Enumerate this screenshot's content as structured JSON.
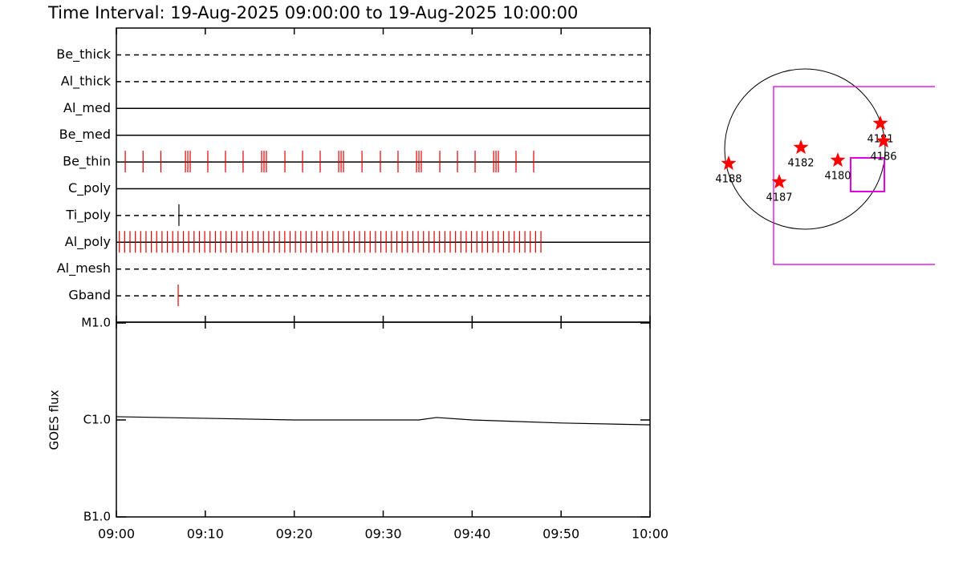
{
  "chart_data": [
    {
      "type": "timeline",
      "title": "Time Interval: 19-Aug-2025 09:00:00 to 19-Aug-2025 10:00:00",
      "xlim": [
        "09:00",
        "10:00"
      ],
      "rows": [
        {
          "name": "Be_thick",
          "line_style": "dashed",
          "color": "#e00000",
          "events": []
        },
        {
          "name": "Al_thick",
          "line_style": "dashed",
          "color": "#e00000",
          "events": []
        },
        {
          "name": "Al_med",
          "line_style": "solid",
          "color": "#e00000",
          "events": []
        },
        {
          "name": "Be_med",
          "line_style": "solid",
          "color": "#e00000",
          "events": []
        },
        {
          "name": "Be_thin",
          "line_style": "solid",
          "color": "#e00000",
          "events": [
            "09:01:00",
            "09:03:00",
            "09:05:00",
            "09:07:46",
            "09:08:02",
            "09:08:18",
            "09:10:17",
            "09:12:16",
            "09:14:15",
            "09:16:20",
            "09:16:36",
            "09:16:52",
            "09:18:57",
            "09:20:56",
            "09:22:55",
            "09:25:00",
            "09:25:16",
            "09:25:32",
            "09:27:37",
            "09:29:41",
            "09:31:40",
            "09:33:45",
            "09:34:01",
            "09:34:17",
            "09:36:22",
            "09:38:21",
            "09:40:20",
            "09:42:25",
            "09:42:41",
            "09:42:57",
            "09:44:56",
            "09:46:55"
          ]
        },
        {
          "name": "C_poly",
          "line_style": "solid",
          "color": "#e00000",
          "events": []
        },
        {
          "name": "Ti_poly",
          "line_style": "dashed",
          "color": "#000000",
          "events": [
            "09:07:02"
          ]
        },
        {
          "name": "Al_poly",
          "line_style": "solid",
          "color": "#e00000",
          "events": [
            "09:00:20",
            "09:00:56",
            "09:01:32",
            "09:02:08",
            "09:02:44",
            "09:03:20",
            "09:03:56",
            "09:04:32",
            "09:05:08",
            "09:05:44",
            "09:06:20",
            "09:06:56",
            "09:07:32",
            "09:08:08",
            "09:08:44",
            "09:09:20",
            "09:09:56",
            "09:10:32",
            "09:11:08",
            "09:11:44",
            "09:12:20",
            "09:12:56",
            "09:13:32",
            "09:14:08",
            "09:14:44",
            "09:15:20",
            "09:15:56",
            "09:16:32",
            "09:17:08",
            "09:17:44",
            "09:18:20",
            "09:18:56",
            "09:19:32",
            "09:20:08",
            "09:20:44",
            "09:21:20",
            "09:21:56",
            "09:22:32",
            "09:23:08",
            "09:23:44",
            "09:24:20",
            "09:24:56",
            "09:25:32",
            "09:26:08",
            "09:26:44",
            "09:27:20",
            "09:27:56",
            "09:28:32",
            "09:29:08",
            "09:29:44",
            "09:30:20",
            "09:30:56",
            "09:31:32",
            "09:32:08",
            "09:32:44",
            "09:33:20",
            "09:33:56",
            "09:34:32",
            "09:35:08",
            "09:35:44",
            "09:36:20",
            "09:36:56",
            "09:37:32",
            "09:38:08",
            "09:38:44",
            "09:39:20",
            "09:39:56",
            "09:40:32",
            "09:41:08",
            "09:41:44",
            "09:42:20",
            "09:42:56",
            "09:43:32",
            "09:44:08",
            "09:44:44",
            "09:45:20",
            "09:45:56",
            "09:46:32",
            "09:47:08",
            "09:47:44"
          ]
        },
        {
          "name": "Al_mesh",
          "line_style": "dashed",
          "color": "#e00000",
          "events": []
        },
        {
          "name": "Gband",
          "line_style": "dashed",
          "color": "#e00000",
          "events": [
            "09:06:57"
          ]
        }
      ]
    },
    {
      "type": "line",
      "ylabel": "GOES flux",
      "log_scale": true,
      "color": "#000000",
      "x": [
        "09:00:00",
        "09:10:00",
        "09:20:00",
        "09:30:00",
        "09:34:00",
        "09:36:00",
        "09:40:00",
        "09:50:00",
        "10:00:00"
      ],
      "values": [
        1.08e-06,
        1.04e-06,
        1e-06,
        1e-06,
        1e-06,
        1.06e-06,
        1e-06,
        9.3e-07,
        8.9e-07
      ],
      "xlim": [
        "09:00",
        "10:00"
      ],
      "xticks": [
        "09:00",
        "09:10",
        "09:20",
        "09:30",
        "09:40",
        "09:50",
        "10:00"
      ],
      "ylim": [
        1e-07,
        1e-05
      ],
      "yticks": [
        {
          "value": 1e-07,
          "label": "B1.0"
        },
        {
          "value": 1e-06,
          "label": "C1.0"
        },
        {
          "value": 1e-05,
          "label": "M1.0"
        }
      ]
    },
    {
      "type": "map",
      "disk_radius": 948,
      "box_color": "#e000e0",
      "boxes": [
        {
          "x": [
            -370,
            1700
          ],
          "y": [
            -1365,
            739
          ]
        },
        {
          "x": [
            540,
            939
          ],
          "y": [
            -502,
            -104
          ]
        }
      ],
      "point_color": "#ff0000",
      "points": [
        {
          "name": "4188",
          "x": -901,
          "y": -171
        },
        {
          "name": "4187",
          "x": -303,
          "y": -389
        },
        {
          "name": "4182",
          "x": -47,
          "y": 19
        },
        {
          "name": "4180",
          "x": 389,
          "y": -133
        },
        {
          "name": "4181",
          "x": 891,
          "y": 303
        },
        {
          "name": "4186",
          "x": 929,
          "y": 95
        }
      ]
    }
  ]
}
